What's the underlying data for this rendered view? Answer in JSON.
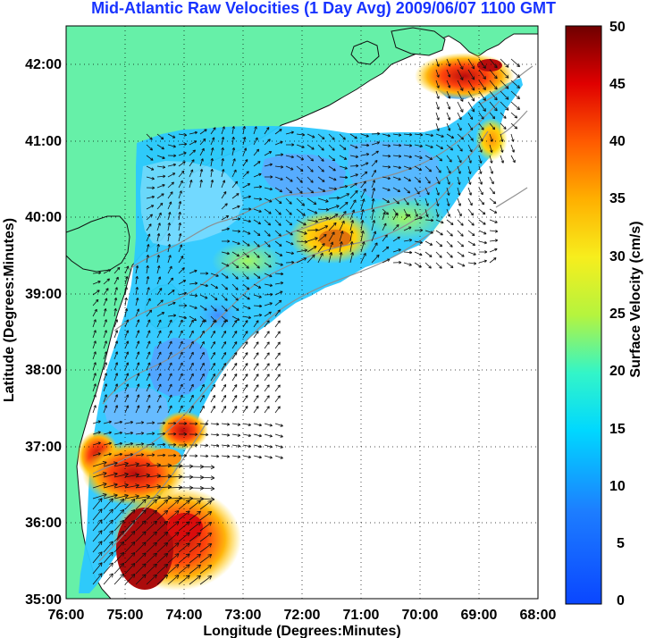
{
  "title": "Mid-Atlantic Raw Velocities (1 Day Avg) 2009/06/07 1100 GMT",
  "axes": {
    "xlabel": "Longitude (Degrees:Minutes)",
    "ylabel": "Latitude (Degrees:Minutes)",
    "xticks": [
      "76:00",
      "75:00",
      "74:00",
      "73:00",
      "72:00",
      "71:00",
      "70:00",
      "69:00",
      "68:00"
    ],
    "yticks": [
      "42:00",
      "41:00",
      "40:00",
      "39:00",
      "38:00",
      "37:00",
      "36:00",
      "35:00"
    ]
  },
  "colorbar": {
    "label": "Surface Velocity (cm/s)",
    "ticks": [
      "50",
      "45",
      "40",
      "35",
      "30",
      "25",
      "20",
      "15",
      "10",
      "5",
      "0"
    ]
  },
  "colors": {
    "title": "#1833ff",
    "land": "#66f0a8",
    "arrow": "#111111",
    "bathymetry": "#8d8d8d"
  },
  "chart_data": {
    "type": "map",
    "region": "Mid-Atlantic",
    "lon_range": [
      -76,
      -68
    ],
    "lat_range": [
      35,
      42.5
    ],
    "units": "cm/s",
    "color_scale": [
      0,
      50
    ]
  }
}
